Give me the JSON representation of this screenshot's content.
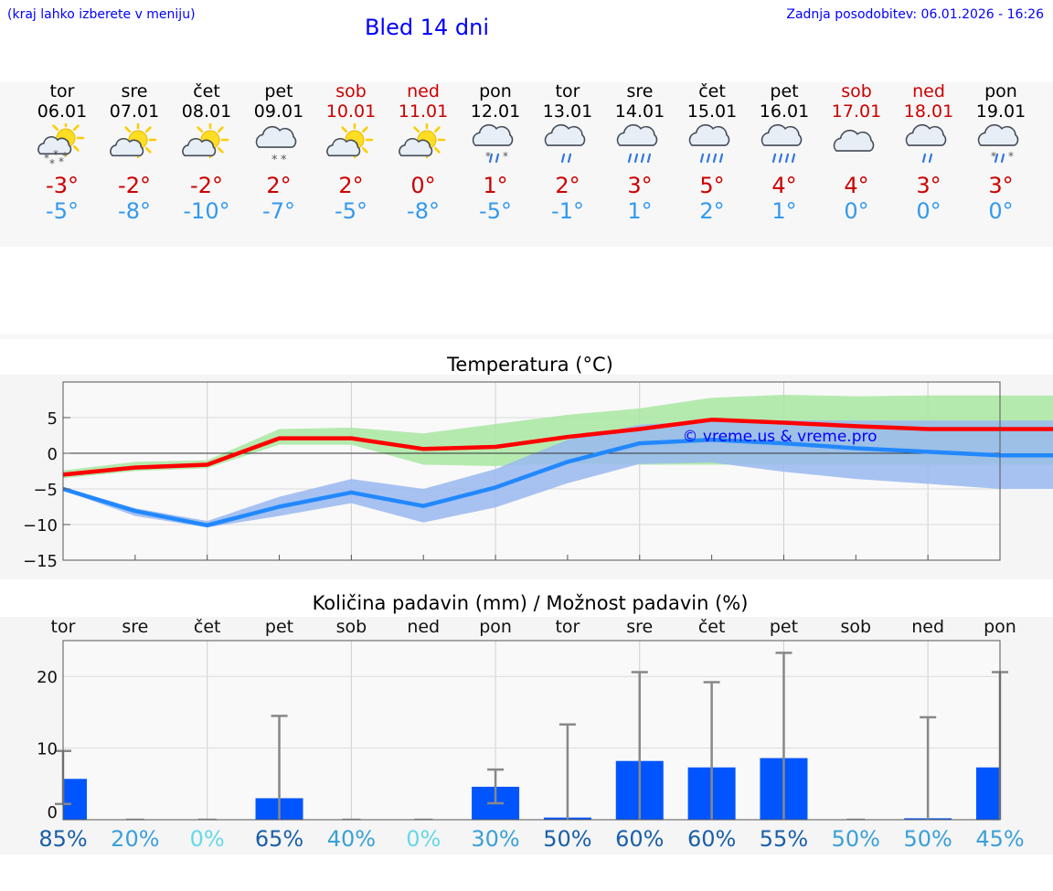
{
  "header": {
    "hint": "(kraj lahko izberete v meniju)",
    "title": "Bled 14 dni",
    "updated": "Zadnja posodobitev: 06.01.2026 - 16:26"
  },
  "colors": {
    "link": "#0000ff",
    "max": "#cc0000",
    "min": "#3399ee",
    "bar": "#0055ff"
  },
  "days": [
    {
      "name": "tor",
      "date": "06.01",
      "weekend": false,
      "icon": "sun-cloud-snow-icon",
      "max": "-3°",
      "min": "-5°"
    },
    {
      "name": "sre",
      "date": "07.01",
      "weekend": false,
      "icon": "sun-cloud-icon",
      "max": "-2°",
      "min": "-8°"
    },
    {
      "name": "čet",
      "date": "08.01",
      "weekend": false,
      "icon": "sun-cloud-icon",
      "max": "-2°",
      "min": "-10°"
    },
    {
      "name": "pet",
      "date": "09.01",
      "weekend": false,
      "icon": "cloud-snow-icon",
      "max": "2°",
      "min": "-7°"
    },
    {
      "name": "sob",
      "date": "10.01",
      "weekend": true,
      "icon": "sun-cloud-icon",
      "max": "2°",
      "min": "-5°"
    },
    {
      "name": "ned",
      "date": "11.01",
      "weekend": true,
      "icon": "sun-cloud-icon",
      "max": "0°",
      "min": "-8°"
    },
    {
      "name": "pon",
      "date": "12.01",
      "weekend": false,
      "icon": "cloud-sleet-icon",
      "max": "1°",
      "min": "-5°"
    },
    {
      "name": "tor",
      "date": "13.01",
      "weekend": false,
      "icon": "cloud-rain-icon",
      "max": "2°",
      "min": "-1°"
    },
    {
      "name": "sre",
      "date": "14.01",
      "weekend": false,
      "icon": "cloud-heavy-rain-icon",
      "max": "3°",
      "min": "1°"
    },
    {
      "name": "čet",
      "date": "15.01",
      "weekend": false,
      "icon": "cloud-heavy-rain-icon",
      "max": "5°",
      "min": "2°"
    },
    {
      "name": "pet",
      "date": "16.01",
      "weekend": false,
      "icon": "cloud-heavy-rain-icon",
      "max": "4°",
      "min": "1°"
    },
    {
      "name": "sob",
      "date": "17.01",
      "weekend": true,
      "icon": "cloud-icon",
      "max": "4°",
      "min": "0°"
    },
    {
      "name": "ned",
      "date": "18.01",
      "weekend": true,
      "icon": "cloud-rain-icon",
      "max": "3°",
      "min": "0°"
    },
    {
      "name": "pon",
      "date": "19.01",
      "weekend": false,
      "icon": "cloud-sleet-icon",
      "max": "3°",
      "min": "0°"
    }
  ],
  "chart_data": [
    {
      "type": "line",
      "title": "Temperatura (°C)",
      "watermark": "© vreme.us & vreme.pro",
      "ylim": [
        -15,
        10
      ],
      "yticks": [
        5,
        0,
        -5,
        -10,
        -15
      ],
      "x": [
        0,
        1,
        2,
        3,
        4,
        5,
        6,
        7,
        8,
        9,
        10,
        11,
        12,
        13,
        14
      ],
      "series": [
        {
          "name": "max",
          "color": "#ff0000",
          "values": [
            -3.0,
            -2.0,
            -1.6,
            2.1,
            2.1,
            0.6,
            0.9,
            2.3,
            3.4,
            4.7,
            4.3,
            3.8,
            3.4,
            3.4,
            3.4
          ],
          "band_low": [
            -3.5,
            -2.5,
            -2.1,
            1.2,
            1.2,
            -1.6,
            -1.8,
            -1.4,
            -1.6,
            -1.6,
            -1.6,
            -1.6,
            -1.6,
            -1.6,
            -1.6
          ],
          "band_high": [
            -2.4,
            -1.2,
            -1.0,
            3.4,
            3.6,
            2.8,
            4.1,
            5.4,
            6.3,
            7.8,
            8.2,
            8.0,
            8.1,
            8.1,
            8.1
          ],
          "band_color": "#a9e8a2"
        },
        {
          "name": "min",
          "color": "#2288ff",
          "values": [
            -5.0,
            -8.1,
            -10.1,
            -7.5,
            -5.5,
            -7.4,
            -4.8,
            -1.2,
            1.4,
            1.9,
            1.4,
            0.7,
            0.2,
            -0.3,
            -0.3
          ],
          "band_low": [
            -5.2,
            -8.8,
            -10.4,
            -8.8,
            -7.0,
            -9.7,
            -7.6,
            -4.2,
            -1.5,
            -1.3,
            -2.6,
            -3.6,
            -4.3,
            -5.0,
            -5.0
          ],
          "band_high": [
            -4.8,
            -7.7,
            -9.5,
            -6.1,
            -3.6,
            -5.0,
            -2.2,
            1.9,
            4.0,
            4.6,
            4.6,
            4.6,
            4.6,
            4.6,
            4.6
          ],
          "band_color": "#99b8f0"
        }
      ]
    },
    {
      "type": "bar",
      "title": "Količina padavin (mm) / Možnost padavin (%)",
      "ylim": [
        0,
        25
      ],
      "yticks": [
        20,
        10,
        0
      ],
      "categories": [
        "tor",
        "sre",
        "čet",
        "pet",
        "sob",
        "ned",
        "pon",
        "tor",
        "sre",
        "čet",
        "pet",
        "sob",
        "ned",
        "pon"
      ],
      "values": [
        5.7,
        0,
        0,
        3.0,
        0,
        0,
        4.6,
        0.3,
        8.2,
        7.3,
        8.6,
        0,
        0.2,
        7.3
      ],
      "err_low": [
        2.2,
        0,
        0,
        0,
        0,
        0,
        2.3,
        0,
        0,
        0,
        0,
        0,
        0,
        0
      ],
      "err_high": [
        9.6,
        0,
        0,
        14.5,
        0,
        0,
        7.0,
        13.3,
        20.6,
        19.2,
        23.3,
        0,
        14.3,
        20.6
      ],
      "probability": [
        "85%",
        "20%",
        "0%",
        "65%",
        "40%",
        "0%",
        "30%",
        "50%",
        "60%",
        "60%",
        "55%",
        "50%",
        "50%",
        "45%"
      ],
      "probability_colors": [
        "#1a5fa8",
        "#3aa0d8",
        "#66d8e8",
        "#1a5fa8",
        "#3aa0d8",
        "#66d8e8",
        "#3aa0d8",
        "#1a5fa8",
        "#1a5fa8",
        "#1a5fa8",
        "#1a5fa8",
        "#3aa0d8",
        "#3aa0d8",
        "#3aa0d8"
      ]
    }
  ]
}
